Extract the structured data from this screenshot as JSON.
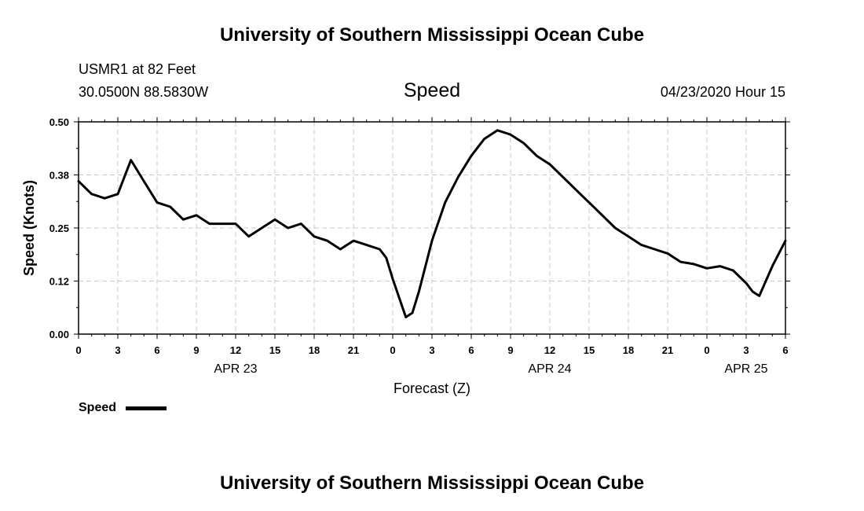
{
  "header": {
    "title": "University of Southern Mississippi Ocean Cube",
    "station": "USMR1 at 82 Feet",
    "coords": "30.0500N 88.5830W",
    "metric": "Speed",
    "datetime": "04/23/2020 Hour 15"
  },
  "footer": {
    "title": "University of Southern Mississippi Ocean Cube"
  },
  "chart_data": {
    "type": "line",
    "xlabel": "Forecast (Z)",
    "ylabel": "Speed (Knots)",
    "xlim": [
      0,
      54
    ],
    "ylim": [
      0,
      0.5
    ],
    "grid": true,
    "y_ticks": [
      "0.00",
      "0.12",
      "0.25",
      "0.38",
      "0.50"
    ],
    "x_ticks": [
      "0",
      "3",
      "6",
      "9",
      "12",
      "15",
      "18",
      "21",
      "0",
      "3",
      "6",
      "9",
      "12",
      "15",
      "18",
      "21",
      "0",
      "3",
      "6"
    ],
    "date_labels": [
      {
        "label": "APR 23",
        "hour": 12
      },
      {
        "label": "APR 24",
        "hour": 36
      },
      {
        "label": "APR 25",
        "hour": 51
      }
    ],
    "legend": {
      "position": "bottom-left",
      "entries": [
        "Speed"
      ]
    },
    "series": [
      {
        "name": "Speed",
        "color": "#000000",
        "x": [
          0,
          1,
          2,
          3,
          4,
          5,
          6,
          7,
          8,
          9,
          10,
          11,
          12,
          13,
          14,
          15,
          16,
          17,
          18,
          19,
          20,
          21,
          22,
          23,
          23.5,
          24,
          25,
          25.5,
          26,
          27,
          28,
          29,
          30,
          31,
          32,
          33,
          34,
          35,
          36,
          37,
          38,
          39,
          40,
          41,
          42,
          43,
          44,
          45,
          46,
          47,
          48,
          49,
          50,
          51,
          51.5,
          52,
          53,
          54
        ],
        "values": [
          0.36,
          0.33,
          0.32,
          0.33,
          0.41,
          0.36,
          0.31,
          0.3,
          0.27,
          0.28,
          0.26,
          0.26,
          0.26,
          0.23,
          0.25,
          0.27,
          0.25,
          0.26,
          0.23,
          0.22,
          0.2,
          0.22,
          0.21,
          0.2,
          0.18,
          0.13,
          0.04,
          0.05,
          0.1,
          0.22,
          0.31,
          0.37,
          0.42,
          0.46,
          0.48,
          0.47,
          0.45,
          0.42,
          0.4,
          0.37,
          0.34,
          0.31,
          0.28,
          0.25,
          0.23,
          0.21,
          0.2,
          0.19,
          0.17,
          0.165,
          0.155,
          0.16,
          0.15,
          0.12,
          0.1,
          0.09,
          0.16,
          0.22
        ]
      }
    ]
  }
}
